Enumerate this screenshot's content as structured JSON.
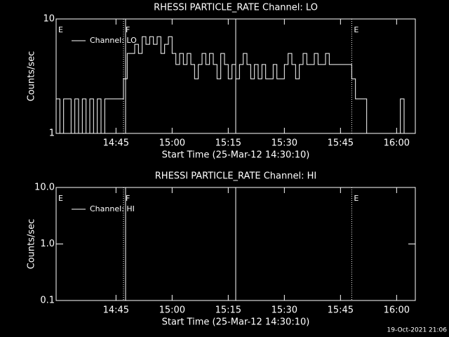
{
  "chart_data": [
    {
      "type": "line",
      "title": "RHESSI PARTICLE_RATE Channel: LO",
      "xlabel": "Start Time (25-Mar-12 14:30:10)",
      "ylabel": "Counts/sec",
      "log_y": true,
      "step": true,
      "xlim": [
        "14:29",
        "16:05"
      ],
      "xticks": [
        "14:45",
        "15:00",
        "15:15",
        "15:30",
        "15:45",
        "16:00"
      ],
      "ylim": [
        1,
        10
      ],
      "yticks": [
        1,
        10
      ],
      "legend": "upper left",
      "x": [
        "14:29",
        "14:30",
        "14:31",
        "14:32",
        "14:33",
        "14:34",
        "14:35",
        "14:36",
        "14:37",
        "14:38",
        "14:39",
        "14:40",
        "14:41",
        "14:42",
        "14:43",
        "14:44",
        "14:45",
        "14:46",
        "14:47",
        "14:48",
        "14:49",
        "14:50",
        "14:51",
        "14:52",
        "14:53",
        "14:54",
        "14:55",
        "14:56",
        "14:57",
        "14:58",
        "14:59",
        "15:00",
        "15:01",
        "15:02",
        "15:03",
        "15:04",
        "15:05",
        "15:06",
        "15:07",
        "15:08",
        "15:09",
        "15:10",
        "15:11",
        "15:12",
        "15:13",
        "15:14",
        "15:15",
        "15:16",
        "15:17",
        "15:18",
        "15:19",
        "15:20",
        "15:21",
        "15:22",
        "15:23",
        "15:24",
        "15:25",
        "15:26",
        "15:27",
        "15:28",
        "15:29",
        "15:30",
        "15:31",
        "15:32",
        "15:33",
        "15:34",
        "15:35",
        "15:36",
        "15:37",
        "15:38",
        "15:39",
        "15:40",
        "15:41",
        "15:42",
        "15:43",
        "15:44",
        "15:45",
        "15:46",
        "15:47",
        "15:48",
        "15:49",
        "15:50",
        "15:51",
        "15:52",
        "15:53",
        "16:01",
        "16:02",
        "16:04",
        "16:05"
      ],
      "series": [
        {
          "name": "Channel: LO",
          "color": "#ffffff",
          "values": [
            2,
            1,
            2,
            2,
            1,
            2,
            1,
            2,
            1,
            2,
            1,
            2,
            1,
            2,
            2,
            2,
            2,
            2,
            3,
            5,
            5,
            6,
            5,
            7,
            6,
            7,
            6,
            7,
            5,
            6,
            7,
            5,
            4,
            5,
            4,
            5,
            4,
            3,
            4,
            5,
            4,
            5,
            4,
            3,
            5,
            4,
            3,
            4,
            3,
            4,
            5,
            4,
            3,
            4,
            3,
            4,
            3,
            3,
            4,
            3,
            3,
            4,
            5,
            4,
            3,
            4,
            5,
            4,
            4,
            5,
            4,
            4,
            5,
            4,
            4,
            4,
            4,
            4,
            4,
            3,
            2,
            2,
            2,
            1,
            1,
            2,
            1,
            1,
            2
          ]
        }
      ],
      "markers": [
        {
          "x": "14:47",
          "style": "dotted"
        },
        {
          "x": "14:47",
          "style": "solid"
        },
        {
          "x": "15:17",
          "style": "solid"
        },
        {
          "x": "15:48",
          "style": "dotted"
        },
        {
          "x": "16:05",
          "style": "dotted"
        }
      ],
      "annotations": [
        {
          "text": "E",
          "x": "14:29"
        },
        {
          "text": "F",
          "x": "14:47"
        },
        {
          "text": "E",
          "x": "15:48"
        }
      ]
    },
    {
      "type": "line",
      "title": "RHESSI PARTICLE_RATE Channel: HI",
      "xlabel": "Start Time (25-Mar-12 14:30:10)",
      "ylabel": "Counts/sec",
      "log_y": true,
      "step": true,
      "xlim": [
        "14:29",
        "16:05"
      ],
      "xticks": [
        "14:45",
        "15:00",
        "15:15",
        "15:30",
        "15:45",
        "16:00"
      ],
      "ylim": [
        0.1,
        10
      ],
      "yticks": [
        {
          "value": 0.1,
          "label": "0.1"
        },
        {
          "value": 1,
          "label": "1.0"
        },
        {
          "value": 10,
          "label": "10.0"
        }
      ],
      "legend": "upper left",
      "series": [
        {
          "name": "Channel: HI",
          "color": "#ffffff"
        }
      ],
      "markers": [
        {
          "x": "14:47",
          "style": "dotted"
        },
        {
          "x": "14:47",
          "style": "solid"
        },
        {
          "x": "15:17",
          "style": "solid"
        },
        {
          "x": "15:48",
          "style": "dotted"
        },
        {
          "x": "16:05",
          "style": "dotted"
        }
      ],
      "annotations": [
        {
          "text": "E",
          "x": "14:29"
        },
        {
          "text": "F",
          "x": "14:47"
        },
        {
          "text": "E",
          "x": "15:48"
        }
      ]
    }
  ],
  "footer": "19-Oct-2021 21:06"
}
